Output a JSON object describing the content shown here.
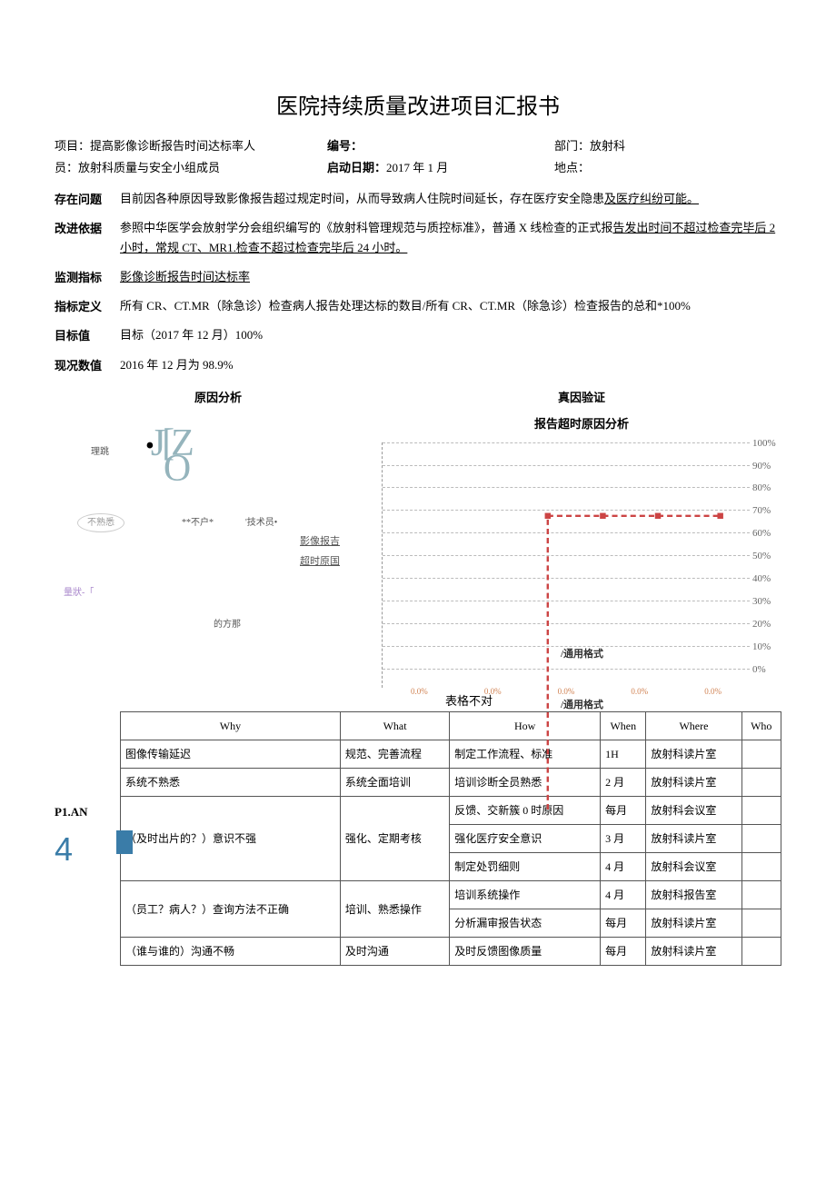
{
  "title": "医院持续质量改进项目汇报书",
  "header": {
    "project_label": "项目：",
    "project_value": "提高影像诊断报告时间达标率人",
    "number_label": "编号：",
    "number_value": "",
    "dept_label": "部门：",
    "dept_value": "放射科",
    "staff_label": "员：",
    "staff_value": "放射科质量与安全小组成员",
    "start_label": "启动日期：",
    "start_value": "2017 年 1 月",
    "location_label": "地点：",
    "location_value": ""
  },
  "rows": {
    "problem_label": "存在问题",
    "problem_text1": "目前因各种原因导致影像报告超过规定时间，从而导致病人住院时间延长，存在医疗安全隐患",
    "problem_text2": "及医疗纠纷可能。",
    "basis_label": "改进依据",
    "basis_text1": "参照中华医学会放射学分会组织编写的《放射科管理规范与质控标准》，普通 X 线检查的正式报",
    "basis_text2": "告发出时间不超过检查完毕后 2 小时，常规 CT、MR1.检查不超过检查完毕后 24 小时。",
    "indicator_label": "监测指标",
    "indicator_text": "影像诊断报告时间达标率",
    "definition_label": "指标定义",
    "definition_text": "所有 CR、CT.MR（除急诊）检查病人报告处理达标的数目/所有 CR、CT.MR（除急诊）检查报告的总和*100%",
    "target_label": "目标值",
    "target_text": "目标（2017 年 12 月）100%",
    "current_label": "现况数值",
    "current_text": "2016 年 12 月为 98.9%"
  },
  "analysis": {
    "left_heading": "原因分析",
    "right_heading": "真因验证",
    "chart_title": "报告超时原因分析",
    "logo_text": "JIZ",
    "small_labels": {
      "reason": "理跳",
      "unfamiliar": "不熟悉",
      "buhu": "**不户*",
      "tech": "'技术员•",
      "report": "影像报吉",
      "timeout": "超时原国",
      "liangzhuang": "量狀-「",
      "defa": "的方那"
    }
  },
  "pareto": {
    "ylabels": [
      "100%",
      "90%",
      "80%",
      "70%",
      "60%",
      "50%",
      "40%",
      "30%",
      "20%",
      "10%",
      "0%"
    ],
    "line_points": [
      80,
      80,
      80,
      80
    ],
    "xaxis_values": [
      "0.0%",
      "0.0%",
      "0.0%",
      "0.0%",
      "0.0%"
    ],
    "format_top": "/通用格式",
    "format_bottom": "/通用格式",
    "line_color": "#c44",
    "xvalue_color": "#d08050"
  },
  "table_note": "表格不对",
  "plan_label": "P1.AN",
  "plan_number": "4",
  "table": {
    "headers": [
      "Why",
      "What",
      "How",
      "When",
      "Where",
      "Who"
    ],
    "rows": [
      [
        "图像传输延迟",
        "规范、完善流程",
        "制定工作流程、标准",
        "1H",
        "放射科读片室",
        ""
      ],
      [
        "系统不熟悉",
        "系统全面培训",
        "培训诊断全员熟悉",
        "2 月",
        "放射科读片室",
        ""
      ],
      [
        {
          "text": "（及时出片的？）意识不强",
          "rowspan": 3
        },
        {
          "text": "强化、定期考核",
          "rowspan": 3
        },
        "反馈、交新簇 0 时原因",
        "每月",
        "放射科会议室",
        ""
      ],
      [
        null,
        null,
        "强化医疗安全意识",
        "3 月",
        "放射科读片室",
        ""
      ],
      [
        null,
        null,
        "制定处罚细则",
        "4 月",
        "放射科会议室",
        ""
      ],
      [
        {
          "text": "（员工？病人？）查询方法不正确",
          "rowspan": 2
        },
        {
          "text": "培训、熟悉操作",
          "rowspan": 2
        },
        "培训系统操作",
        "4 月",
        "放射科报告室",
        ""
      ],
      [
        null,
        null,
        "分析漏审报告状态",
        "每月",
        "放射科读片室",
        ""
      ],
      [
        "（谁与谁的）沟通不畅",
        "及时沟通",
        "及时反馈图像质量",
        "每月",
        "放射科读片室",
        ""
      ]
    ]
  }
}
